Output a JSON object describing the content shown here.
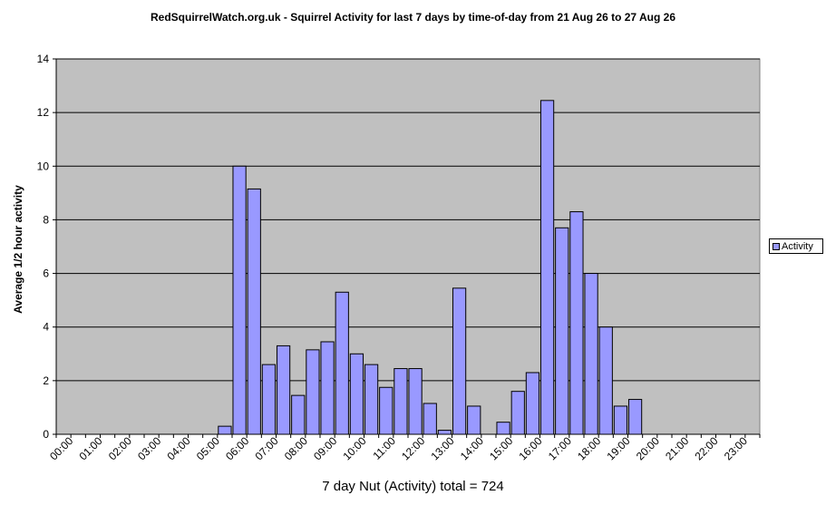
{
  "chart_data": {
    "type": "bar",
    "title": "RedSquirrelWatch.org.uk - Squirrel Activity for last 7 days by time-of-day from 21 Aug 26 to 27 Aug 26",
    "xlabel": "7 day Nut (Activity) total = 724",
    "ylabel": "Average 1/2 hour activity",
    "ylim": [
      0,
      14
    ],
    "yticks": [
      0,
      2,
      4,
      6,
      8,
      10,
      12,
      14
    ],
    "grid": true,
    "legend_position": "right",
    "tick_labels": [
      "00:00",
      "01:00",
      "02:00",
      "03:00",
      "04:00",
      "05:00",
      "06:00",
      "07:00",
      "08:00",
      "09:00",
      "10:00",
      "11:00",
      "12:00",
      "13:00",
      "14:00",
      "15:00",
      "16:00",
      "17:00",
      "18:00",
      "19:00",
      "20:00",
      "21:00",
      "22:00",
      "23:00"
    ],
    "categories": [
      "00:00",
      "00:30",
      "01:00",
      "01:30",
      "02:00",
      "02:30",
      "03:00",
      "03:30",
      "04:00",
      "04:30",
      "05:00",
      "05:30",
      "06:00",
      "06:30",
      "07:00",
      "07:30",
      "08:00",
      "08:30",
      "09:00",
      "09:30",
      "10:00",
      "10:30",
      "11:00",
      "11:30",
      "12:00",
      "12:30",
      "13:00",
      "13:30",
      "14:00",
      "14:30",
      "15:00",
      "15:30",
      "16:00",
      "16:30",
      "17:00",
      "17:30",
      "18:00",
      "18:30",
      "19:00",
      "19:30",
      "20:00",
      "20:30",
      "21:00",
      "21:30",
      "22:00",
      "22:30",
      "23:00",
      "23:30"
    ],
    "series": [
      {
        "name": "Activity",
        "color": "#9999ff",
        "values": [
          0,
          0,
          0,
          0,
          0,
          0,
          0,
          0,
          0,
          0,
          0,
          0.3,
          10,
          9.15,
          2.6,
          3.3,
          1.45,
          3.15,
          3.45,
          5.3,
          3,
          2.6,
          1.75,
          2.45,
          2.45,
          1.15,
          0.15,
          5.45,
          1.05,
          0,
          0.45,
          1.6,
          2.3,
          12.45,
          7.7,
          8.3,
          6,
          4,
          1.05,
          1.3,
          0,
          0,
          0,
          0,
          0,
          0,
          0,
          0
        ]
      }
    ],
    "plot_background": "#c0c0c0",
    "gridline_color": "#000000"
  }
}
